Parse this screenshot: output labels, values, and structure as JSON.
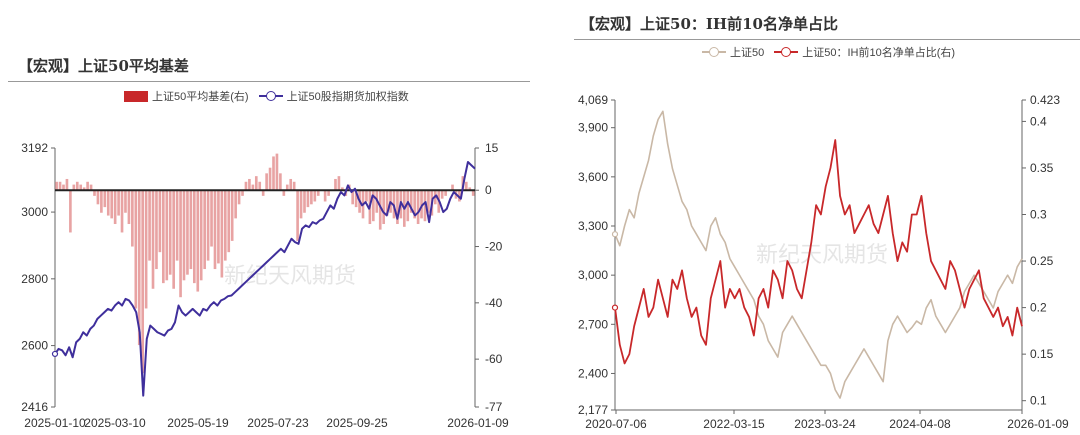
{
  "left_chart": {
    "title": "【宏观】上证50平均基差",
    "legend": [
      {
        "name": "上证50平均基差(右)",
        "color": "#c8282a",
        "kind": "bar"
      },
      {
        "name": "上证50股指期货加权指数",
        "color": "#3f2f9c",
        "kind": "line"
      }
    ],
    "watermark": "新纪天风期货"
  },
  "right_chart": {
    "title": "【宏观】上证50：IH前10名净单占比",
    "legend": [
      {
        "name": "上证50",
        "color": "#c9b8a6",
        "kind": "line"
      },
      {
        "name": "上证50：IH前10名净单占比(右)",
        "color": "#c8282a",
        "kind": "line"
      }
    ],
    "watermark": "新纪天风期货"
  },
  "chart_data": [
    {
      "type": "bar",
      "title": "【宏观】上证50平均基差",
      "x_ticks": [
        "2025-01-10",
        "2025-03-10",
        "2025-05-19",
        "2025-07-23",
        "2025-09-25",
        "2026-01-09"
      ],
      "y_left": {
        "ticks": [
          2416,
          2600,
          2800,
          3000,
          3192
        ],
        "range": [
          2416,
          3192
        ]
      },
      "y_right": {
        "ticks": [
          -77,
          -60,
          -40,
          -20,
          0,
          15
        ],
        "range": [
          -77,
          15
        ]
      },
      "series": [
        {
          "name": "上证50平均基差(右)",
          "axis": "right",
          "type": "bar",
          "color": "#c8282a",
          "values": [
            3,
            3,
            2,
            4,
            -15,
            2,
            3,
            2,
            1,
            3,
            2,
            -2,
            -5,
            -8,
            -6,
            -9,
            -10,
            -12,
            -9,
            -15,
            -8,
            -12,
            -20,
            -42,
            -55,
            -65,
            -42,
            -25,
            -35,
            -28,
            -22,
            -33,
            -32,
            -30,
            -35,
            -25,
            -38,
            -32,
            -30,
            -28,
            -33,
            -36,
            -32,
            -28,
            -25,
            -20,
            -28,
            -26,
            -31,
            -25,
            -22,
            -18,
            -10,
            -5,
            -2,
            3,
            4,
            2,
            5,
            3,
            -2,
            6,
            8,
            12,
            13,
            6,
            -2,
            2,
            4,
            3,
            -18,
            -10,
            -8,
            -6,
            -5,
            -4,
            -2,
            0,
            -4,
            -2,
            0,
            4,
            5,
            1,
            -2,
            2,
            -5,
            -6,
            -8,
            -10,
            -4,
            -12,
            -11,
            -8,
            -14,
            -12,
            -9,
            -8,
            -10,
            -12,
            -10,
            -13,
            -11,
            -8,
            -10,
            -12,
            -10,
            -11,
            -8,
            -9,
            -5,
            -8,
            -3,
            -2,
            0,
            2,
            -3,
            -4,
            5,
            3,
            1,
            -2
          ]
        },
        {
          "name": "上证50股指期货加权指数",
          "axis": "left",
          "type": "line",
          "color": "#3f2f9c",
          "values": [
            2575,
            2590,
            2586,
            2571,
            2595,
            2565,
            2610,
            2620,
            2640,
            2630,
            2650,
            2660,
            2680,
            2690,
            2700,
            2710,
            2705,
            2720,
            2730,
            2720,
            2740,
            2735,
            2720,
            2700,
            2640,
            2450,
            2620,
            2660,
            2650,
            2640,
            2635,
            2630,
            2645,
            2650,
            2670,
            2720,
            2700,
            2690,
            2700,
            2710,
            2700,
            2690,
            2710,
            2705,
            2720,
            2730,
            2720,
            2735,
            2740,
            2748,
            2750,
            2760,
            2770,
            2780,
            2790,
            2800,
            2810,
            2820,
            2830,
            2840,
            2850,
            2860,
            2870,
            2880,
            2890,
            2880,
            2900,
            2920,
            2910,
            2905,
            2950,
            2960,
            2955,
            2970,
            2965,
            2975,
            2980,
            3000,
            3020,
            3010,
            3040,
            3060,
            3050,
            3080,
            3060,
            3070,
            3040,
            3020,
            3030,
            3010,
            3050,
            3040,
            3020,
            3000,
            2990,
            3030,
            3020,
            2980,
            3030,
            3010,
            3030,
            3010,
            2990,
            3000,
            3020,
            3030,
            2970,
            3040,
            3050,
            3030,
            3000,
            3010,
            3040,
            3060,
            3050,
            3040,
            3100,
            3150,
            3140,
            3130
          ]
        }
      ]
    },
    {
      "type": "line",
      "title": "【宏观】上证50：IH前10名净单占比",
      "x_ticks": [
        "2020-07-06",
        "2022-03-15",
        "2023-03-24",
        "2024-04-08",
        "2026-01-09"
      ],
      "y_left": {
        "ticks": [
          2177,
          2400,
          2700,
          3000,
          3300,
          3600,
          3900,
          4069
        ],
        "range": [
          2177,
          4069
        ]
      },
      "y_right": {
        "ticks": [
          0.1,
          0.15,
          0.2,
          0.25,
          0.3,
          0.35,
          0.4,
          0.423
        ],
        "range": [
          0.09,
          0.423
        ]
      },
      "series": [
        {
          "name": "上证50",
          "axis": "left",
          "color": "#c9b8a6",
          "values": [
            3250,
            3180,
            3300,
            3400,
            3350,
            3500,
            3600,
            3700,
            3850,
            3950,
            4000,
            3800,
            3650,
            3550,
            3450,
            3400,
            3300,
            3250,
            3200,
            3150,
            3300,
            3350,
            3250,
            3200,
            3100,
            3050,
            3000,
            2950,
            2900,
            2850,
            2750,
            2700,
            2600,
            2550,
            2500,
            2650,
            2700,
            2750,
            2700,
            2650,
            2600,
            2550,
            2500,
            2450,
            2450,
            2400,
            2300,
            2250,
            2350,
            2400,
            2450,
            2500,
            2550,
            2500,
            2450,
            2400,
            2350,
            2600,
            2700,
            2750,
            2700,
            2650,
            2680,
            2720,
            2700,
            2800,
            2850,
            2750,
            2700,
            2650,
            2700,
            2750,
            2800,
            2900,
            2950,
            3000,
            2950,
            2900,
            2850,
            2800,
            2900,
            2950,
            3000,
            2950,
            3050,
            3100
          ]
        },
        {
          "name": "上证50：IH前10名净单占比(右)",
          "axis": "right",
          "color": "#c8282a",
          "values": [
            0.2,
            0.16,
            0.14,
            0.15,
            0.18,
            0.2,
            0.22,
            0.19,
            0.2,
            0.23,
            0.21,
            0.19,
            0.23,
            0.22,
            0.24,
            0.21,
            0.19,
            0.2,
            0.17,
            0.16,
            0.21,
            0.23,
            0.25,
            0.2,
            0.22,
            0.21,
            0.22,
            0.2,
            0.19,
            0.17,
            0.21,
            0.22,
            0.2,
            0.24,
            0.23,
            0.21,
            0.25,
            0.24,
            0.22,
            0.21,
            0.24,
            0.27,
            0.31,
            0.3,
            0.33,
            0.35,
            0.38,
            0.32,
            0.3,
            0.31,
            0.28,
            0.29,
            0.3,
            0.31,
            0.29,
            0.28,
            0.3,
            0.32,
            0.28,
            0.25,
            0.27,
            0.26,
            0.3,
            0.3,
            0.32,
            0.28,
            0.25,
            0.24,
            0.23,
            0.22,
            0.25,
            0.24,
            0.22,
            0.2,
            0.22,
            0.23,
            0.24,
            0.21,
            0.2,
            0.19,
            0.2,
            0.18,
            0.19,
            0.17,
            0.2,
            0.18
          ]
        }
      ]
    }
  ]
}
